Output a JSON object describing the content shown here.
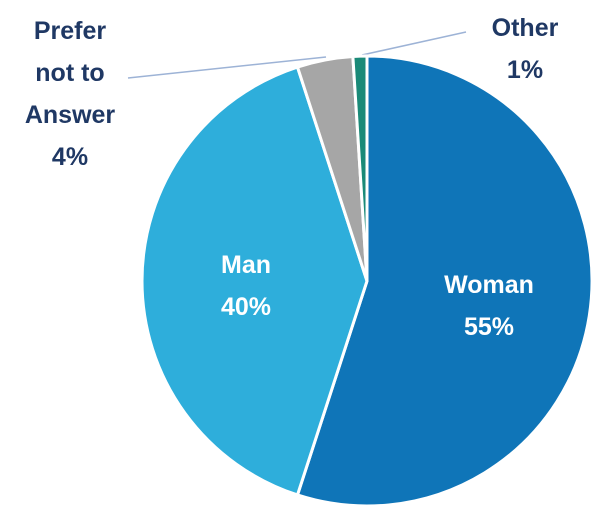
{
  "chart_data": {
    "type": "pie",
    "categories": [
      "Woman",
      "Man",
      "Prefer not to Answer",
      "Other"
    ],
    "values": [
      55,
      40,
      4,
      1
    ],
    "value_labels": [
      "55%",
      "40%",
      "4%",
      "1%"
    ],
    "colors": [
      "#0f75b8",
      "#2eaedb",
      "#a6a6a6",
      "#1a8a78"
    ]
  }
}
